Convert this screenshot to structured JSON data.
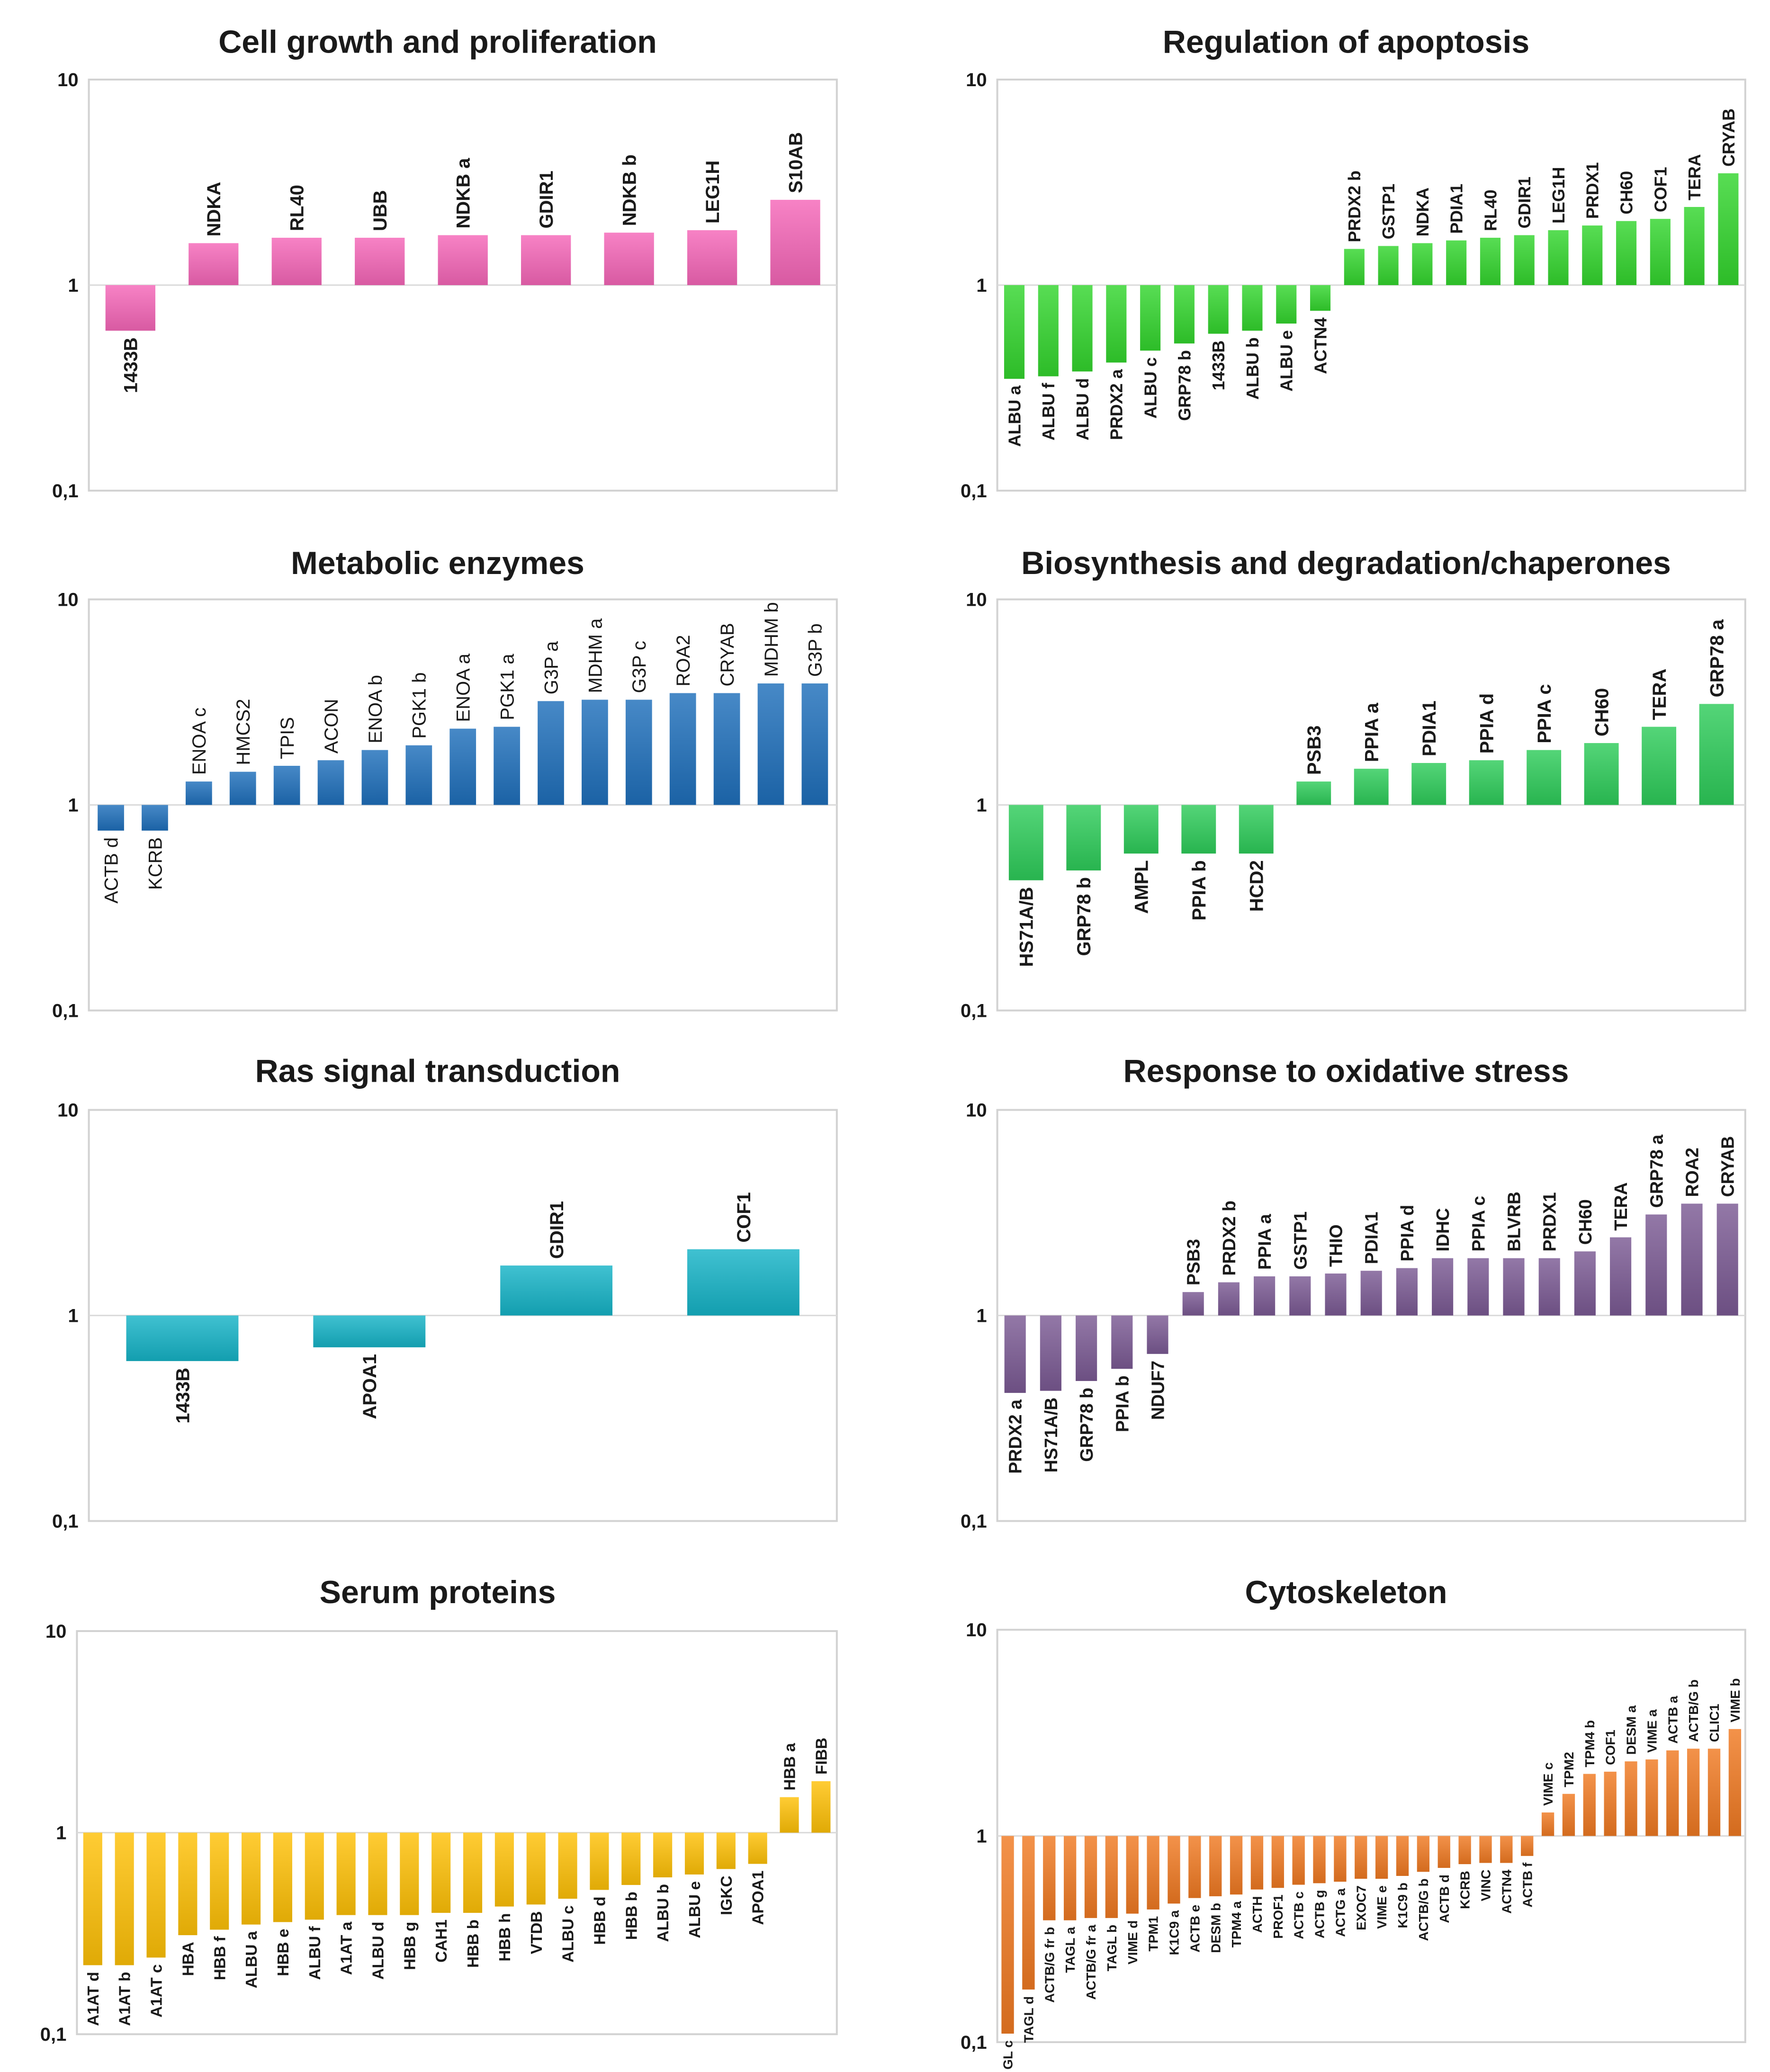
{
  "chart_data": [
    {
      "type": "bar",
      "title": "Cell growth and proliferation",
      "scale": "log",
      "ylim": [
        0.1,
        10
      ],
      "ytick_labels": [
        "10",
        "1",
        "0,1"
      ],
      "color": "#f566b8",
      "label_weight": "bold",
      "categories": [
        "1433B",
        "NDKA",
        "RL40",
        "UBB",
        "NDKB a",
        "GDIR1",
        "NDKB b",
        "LEG1H",
        "S10AB"
      ],
      "values": [
        0.6,
        1.6,
        1.7,
        1.7,
        1.75,
        1.75,
        1.8,
        1.85,
        2.6
      ]
    },
    {
      "type": "bar",
      "title": "Regulation of apoptosis",
      "scale": "log",
      "ylim": [
        0.1,
        10
      ],
      "ytick_labels": [
        "10",
        "1",
        "0,1"
      ],
      "color": "#33d62e",
      "label_weight": "bold",
      "categories": [
        "ALBU a",
        "ALBU f",
        "ALBU d",
        "PRDX2 a",
        "ALBU c",
        "GRP78 b",
        "1433B",
        "ALBU b",
        "ALBU e",
        "ACTN4",
        "PRDX2 b",
        "GSTP1",
        "NDKA",
        "PDIA1",
        "RL40",
        "GDIR1",
        "LEG1H",
        "PRDX1",
        "CH60",
        "COF1",
        "TERA",
        "CRYAB"
      ],
      "values": [
        0.35,
        0.36,
        0.38,
        0.42,
        0.48,
        0.52,
        0.58,
        0.6,
        0.65,
        0.75,
        1.5,
        1.55,
        1.6,
        1.65,
        1.7,
        1.75,
        1.85,
        1.95,
        2.05,
        2.1,
        2.4,
        3.5
      ]
    },
    {
      "type": "bar",
      "title": "Metabolic enzymes",
      "scale": "log",
      "ylim": [
        0.1,
        10
      ],
      "ytick_labels": [
        "10",
        "1",
        "0,1"
      ],
      "color": "#1f6fbb",
      "label_weight": "normal",
      "categories": [
        "ACTB d",
        "KCRB",
        "ENOA c",
        "HMCS2",
        "TPIS",
        "ACON",
        "ENOA b",
        "PGK1 b",
        "ENOA a",
        "PGK1 a",
        "G3P a",
        "MDHM a",
        "G3P c",
        "ROA2",
        "CRYAB",
        "MDHM b",
        "G3P b"
      ],
      "values": [
        0.75,
        0.75,
        1.3,
        1.45,
        1.55,
        1.65,
        1.85,
        1.95,
        2.35,
        2.4,
        3.2,
        3.25,
        3.25,
        3.5,
        3.5,
        3.9,
        3.9
      ]
    },
    {
      "type": "bar",
      "title": "Biosynthesis and degradation/chaperones",
      "scale": "log",
      "ylim": [
        0.1,
        10
      ],
      "ytick_labels": [
        "10",
        "1",
        "0,1"
      ],
      "color": "#2ecc5a",
      "label_weight": "bold",
      "categories": [
        "HS71A/B",
        "GRP78 b",
        "AMPL",
        "PPIA b",
        "HCD2",
        "PSB3",
        "PPIA a",
        "PDIA1",
        "PPIA d",
        "PPIA c",
        "CH60",
        "TERA",
        "GRP78 a"
      ],
      "values": [
        0.43,
        0.48,
        0.58,
        0.58,
        0.58,
        1.3,
        1.5,
        1.6,
        1.65,
        1.85,
        2.0,
        2.4,
        3.1
      ]
    },
    {
      "type": "bar",
      "title": "Ras signal transduction",
      "scale": "log",
      "ylim": [
        0.1,
        10
      ],
      "ytick_labels": [
        "10",
        "1",
        "0,1"
      ],
      "color": "#16b3c7",
      "label_weight": "bold",
      "categories": [
        "1433B",
        "APOA1",
        "GDIR1",
        "COF1"
      ],
      "values": [
        0.6,
        0.7,
        1.75,
        2.1
      ]
    },
    {
      "type": "bar",
      "title": "Response to oxidative stress",
      "scale": "log",
      "ylim": [
        0.1,
        10
      ],
      "ytick_labels": [
        "10",
        "1",
        "0,1"
      ],
      "color": "#7b5a94",
      "label_weight": "bold",
      "categories": [
        "PRDX2 a",
        "HS71A/B",
        "GRP78 b",
        "PPIA b",
        "NDUF7",
        "PSB3",
        "PRDX2 b",
        "PPIA a",
        "GSTP1",
        "THIO",
        "PDIA1",
        "PPIA d",
        "IDHC",
        "PPIA c",
        "BLVRB",
        "PRDX1",
        "CH60",
        "TERA",
        "GRP78 a",
        "ROA2",
        "CRYAB"
      ],
      "values": [
        0.42,
        0.43,
        0.48,
        0.55,
        0.65,
        1.3,
        1.45,
        1.55,
        1.55,
        1.6,
        1.65,
        1.7,
        1.9,
        1.9,
        1.9,
        1.9,
        2.05,
        2.4,
        3.1,
        3.5,
        3.5
      ]
    },
    {
      "type": "bar",
      "title": "Serum proteins",
      "scale": "log",
      "ylim": [
        0.1,
        10
      ],
      "ytick_labels": [
        "10",
        "1",
        "0,1"
      ],
      "color": "#ffc107",
      "label_weight": "bold",
      "categories": [
        "A1AT d",
        "A1AT b",
        "A1AT c",
        "HBA",
        "HBB f",
        "ALBU a",
        "HBB e",
        "ALBU f",
        "A1AT a",
        "ALBU d",
        "HBB g",
        "CAH1",
        "HBB b",
        "HBB h",
        "VTDB",
        "ALBU c",
        "HBB d",
        "HBB b",
        "ALBU b",
        "ALBU e",
        "IGKC",
        "APOA1",
        "HBB a",
        "FIBB"
      ],
      "values": [
        0.22,
        0.22,
        0.24,
        0.31,
        0.33,
        0.35,
        0.36,
        0.37,
        0.39,
        0.39,
        0.39,
        0.4,
        0.4,
        0.43,
        0.44,
        0.47,
        0.52,
        0.55,
        0.6,
        0.62,
        0.66,
        0.7,
        1.5,
        1.8
      ]
    },
    {
      "type": "bar",
      "title": "Cytoskeleton",
      "scale": "log",
      "ylim": [
        0.1,
        10
      ],
      "ytick_labels": [
        "10",
        "1",
        "0,1"
      ],
      "color": "#f07a22",
      "label_weight": "bold",
      "categories": [
        "TAGL c",
        "TAGL d",
        "ACTB/G fr b",
        "TAGL a",
        "ACTB/G fr a",
        "TAGL b",
        "VIME d",
        "TPM1",
        "K1C9 a",
        "ACTB e",
        "DESM b",
        "TPM4 a",
        "ACTH",
        "PROF1",
        "ACTB c",
        "ACTB g",
        "ACTG a",
        "EXOC7",
        "VIME e",
        "K1C9 b",
        "ACTB/G b",
        "ACTB d",
        "KCRB",
        "VINC",
        "ACTN4",
        "ACTB f",
        "VIME c",
        "TPM2",
        "TPM4 b",
        "COF1",
        "DESM a",
        "VIME a",
        "ACTB a",
        "ACTB/G b",
        "CLIC1",
        "VIME b"
      ],
      "values": [
        0.11,
        0.18,
        0.39,
        0.39,
        0.4,
        0.4,
        0.42,
        0.44,
        0.47,
        0.5,
        0.51,
        0.52,
        0.55,
        0.56,
        0.58,
        0.59,
        0.6,
        0.62,
        0.62,
        0.64,
        0.67,
        0.7,
        0.73,
        0.74,
        0.74,
        0.8,
        1.3,
        1.6,
        2.0,
        2.05,
        2.3,
        2.35,
        2.6,
        2.65,
        2.65,
        3.3
      ]
    }
  ]
}
